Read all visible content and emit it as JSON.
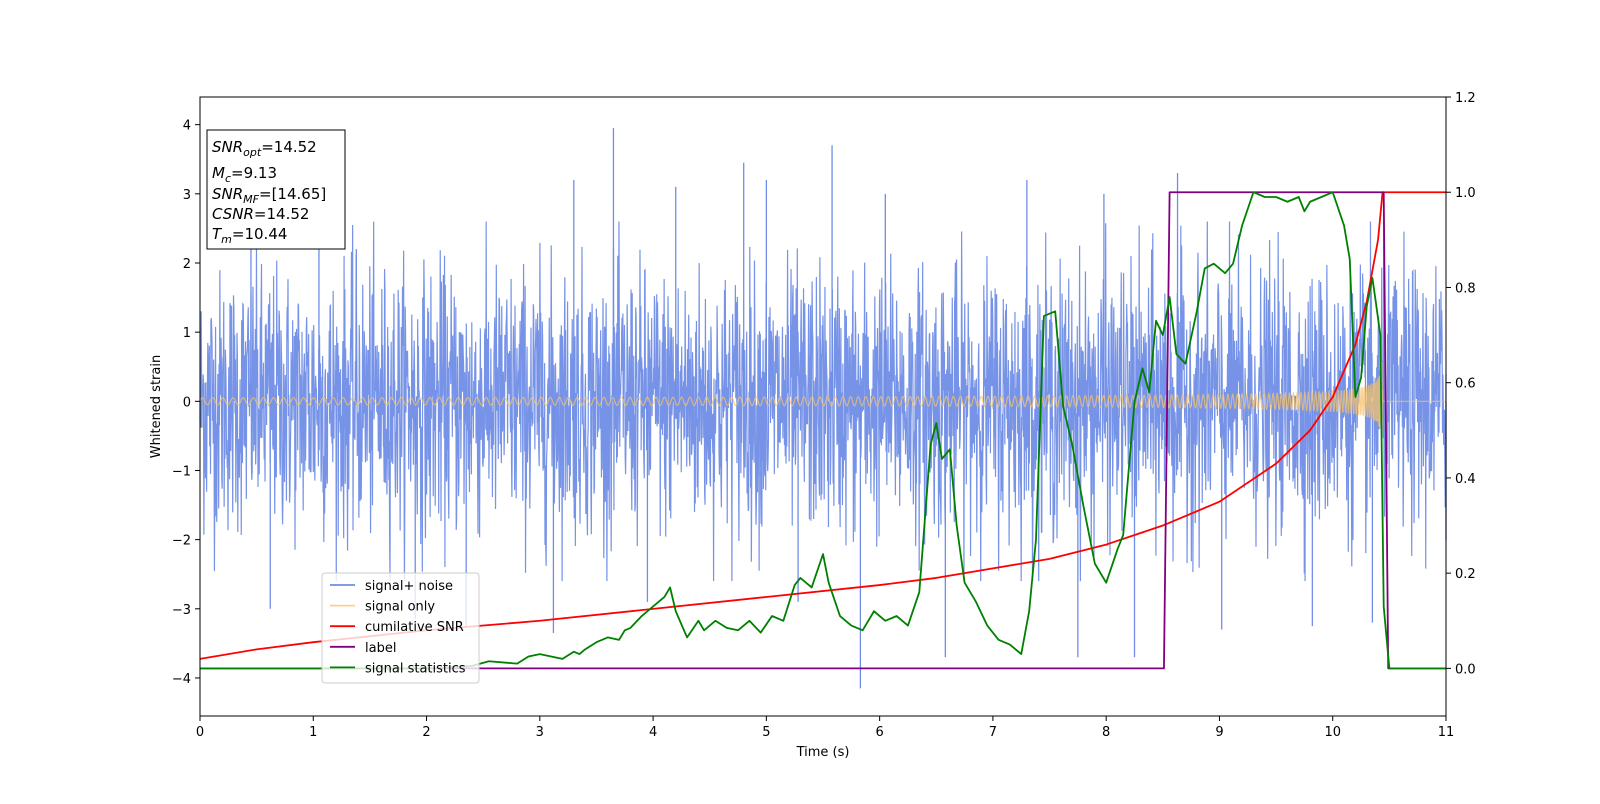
{
  "chart_data": {
    "type": "line",
    "xlabel": "Time (s)",
    "ylabel": "Whitened strain",
    "xlim": [
      0,
      11
    ],
    "ylim": [
      -4.55,
      4.4
    ],
    "y2lim": [
      -0.1,
      1.2
    ],
    "xticks": [
      0,
      1,
      2,
      3,
      4,
      5,
      6,
      7,
      8,
      9,
      10,
      11
    ],
    "yticks": [
      -4,
      -3,
      -2,
      -1,
      0,
      1,
      2,
      3,
      4
    ],
    "y2ticks": [
      0.0,
      0.2,
      0.4,
      0.6,
      0.8,
      1.0,
      1.2
    ],
    "y2tick_labels": [
      "0.0",
      "0.2",
      "0.4",
      "0.6",
      "0.8",
      "1.0",
      "1.2"
    ],
    "grid": false,
    "legend_position": "lower-left",
    "annotation": {
      "lines": [
        {
          "main": "SNR",
          "sub": "opt",
          "value": "=14.52"
        },
        {
          "main": "M",
          "sub": "c",
          "value": "=9.13"
        },
        {
          "main": "SNR",
          "sub": "MF",
          "value": "=[14.65]"
        },
        {
          "main": "CSNR",
          "sub": "",
          "value": "=14.52"
        },
        {
          "main": "T",
          "sub": "m",
          "value": "=10.44"
        }
      ]
    },
    "series": [
      {
        "name": "signal+ noise",
        "axis": "left",
        "color": "#6f8de6",
        "kind": "noise",
        "base_amplitude": 1.3,
        "spikes": [
          [
            0.45,
            2.8
          ],
          [
            0.62,
            -3.0
          ],
          [
            1.05,
            2.9
          ],
          [
            1.38,
            2.2
          ],
          [
            1.9,
            -3.15
          ],
          [
            2.35,
            -3.25
          ],
          [
            3.12,
            -3.35
          ],
          [
            3.3,
            3.2
          ],
          [
            3.65,
            3.95
          ],
          [
            3.95,
            -2.9
          ],
          [
            4.2,
            3.1
          ],
          [
            4.8,
            3.45
          ],
          [
            5.0,
            3.2
          ],
          [
            5.28,
            -2.9
          ],
          [
            5.58,
            3.7
          ],
          [
            5.83,
            -4.15
          ],
          [
            6.05,
            3.0
          ],
          [
            6.58,
            -3.7
          ],
          [
            7.3,
            3.2
          ],
          [
            7.75,
            -3.7
          ],
          [
            7.98,
            3.0
          ],
          [
            8.25,
            -3.7
          ],
          [
            8.63,
            3.3
          ],
          [
            9.02,
            -3.3
          ],
          [
            9.82,
            -3.25
          ],
          [
            10.35,
            -3.2
          ],
          [
            11.0,
            -2.0
          ]
        ]
      },
      {
        "name": "signal only",
        "axis": "left",
        "color": "#f5c26b",
        "kind": "chirp",
        "amplitude_start": 0.05,
        "amplitude_end": 0.55,
        "t_end": 10.44
      },
      {
        "name": "cumilative SNR",
        "axis": "right",
        "color": "#ff0000",
        "x": [
          0,
          0.5,
          1,
          2,
          3,
          4,
          5,
          6,
          6.5,
          7,
          7.5,
          8,
          8.5,
          9,
          9.5,
          9.8,
          10,
          10.2,
          10.3,
          10.4,
          10.44,
          11
        ],
        "y": [
          0.02,
          0.04,
          0.055,
          0.08,
          0.1,
          0.125,
          0.15,
          0.175,
          0.19,
          0.21,
          0.23,
          0.26,
          0.3,
          0.35,
          0.43,
          0.5,
          0.57,
          0.68,
          0.77,
          0.9,
          1.0,
          1.0
        ]
      },
      {
        "name": "label",
        "axis": "right",
        "color": "#800080",
        "x": [
          0,
          8.51,
          8.56,
          10.45,
          10.49,
          11
        ],
        "y": [
          0.0,
          0.0,
          1.0,
          1.0,
          0.0,
          0.0
        ]
      },
      {
        "name": "signal statistics",
        "axis": "right",
        "color": "#008000",
        "x": [
          0,
          0.5,
          1.0,
          1.5,
          2.0,
          2.4,
          2.55,
          2.8,
          2.9,
          3.0,
          3.1,
          3.2,
          3.3,
          3.35,
          3.4,
          3.5,
          3.6,
          3.7,
          3.75,
          3.8,
          3.9,
          4.0,
          4.1,
          4.15,
          4.2,
          4.3,
          4.4,
          4.45,
          4.55,
          4.65,
          4.75,
          4.85,
          4.95,
          5.05,
          5.15,
          5.25,
          5.3,
          5.4,
          5.5,
          5.55,
          5.65,
          5.75,
          5.85,
          5.95,
          6.05,
          6.15,
          6.25,
          6.35,
          6.45,
          6.5,
          6.55,
          6.62,
          6.68,
          6.75,
          6.85,
          6.95,
          7.05,
          7.15,
          7.25,
          7.32,
          7.38,
          7.45,
          7.55,
          7.62,
          7.7,
          7.8,
          7.9,
          8.0,
          8.1,
          8.15,
          8.25,
          8.32,
          8.38,
          8.44,
          8.5,
          8.56,
          8.62,
          8.7,
          8.8,
          8.87,
          8.95,
          9.05,
          9.12,
          9.2,
          9.3,
          9.4,
          9.5,
          9.6,
          9.7,
          9.75,
          9.8,
          9.9,
          10.0,
          10.1,
          10.15,
          10.2,
          10.25,
          10.3,
          10.35,
          10.38,
          10.42,
          10.45,
          10.5,
          10.6,
          10.8,
          11.0
        ],
        "y": [
          0.0,
          0.0,
          0.0,
          0.0,
          0.0,
          0.005,
          0.015,
          0.01,
          0.025,
          0.03,
          0.025,
          0.02,
          0.035,
          0.03,
          0.04,
          0.055,
          0.065,
          0.06,
          0.08,
          0.085,
          0.11,
          0.13,
          0.15,
          0.17,
          0.12,
          0.065,
          0.1,
          0.08,
          0.1,
          0.085,
          0.08,
          0.1,
          0.075,
          0.11,
          0.1,
          0.175,
          0.19,
          0.17,
          0.24,
          0.18,
          0.11,
          0.09,
          0.08,
          0.12,
          0.1,
          0.11,
          0.09,
          0.16,
          0.47,
          0.515,
          0.44,
          0.46,
          0.3,
          0.18,
          0.14,
          0.09,
          0.06,
          0.05,
          0.03,
          0.12,
          0.27,
          0.74,
          0.75,
          0.55,
          0.47,
          0.34,
          0.22,
          0.18,
          0.25,
          0.28,
          0.56,
          0.63,
          0.58,
          0.73,
          0.7,
          0.78,
          0.66,
          0.64,
          0.75,
          0.84,
          0.85,
          0.83,
          0.85,
          0.93,
          1.0,
          0.99,
          0.99,
          0.98,
          0.99,
          0.96,
          0.98,
          0.99,
          1.0,
          0.93,
          0.86,
          0.57,
          0.61,
          0.76,
          0.82,
          0.77,
          0.7,
          0.13,
          0.0,
          0.0,
          0.0,
          0.0
        ]
      }
    ]
  }
}
